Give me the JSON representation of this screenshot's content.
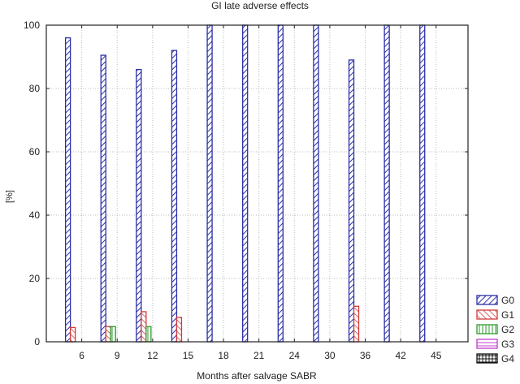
{
  "chart_data": {
    "type": "bar",
    "title": "GI late adverse effects",
    "xlabel": "Months after salvage SABR",
    "ylabel": "[%]",
    "ylim": [
      0,
      100
    ],
    "yticks": [
      0,
      20,
      40,
      60,
      80,
      100
    ],
    "grid": true,
    "legend_position": "right-bottom",
    "categories": [
      "6",
      "9",
      "12",
      "15",
      "18",
      "21",
      "24",
      "30",
      "36",
      "42",
      "45"
    ],
    "series": [
      {
        "name": "G0",
        "color": "#2b2fa8",
        "pattern": "diagonal-up",
        "values": [
          96,
          90.5,
          86,
          92,
          100,
          100,
          100,
          100,
          89,
          100,
          100
        ]
      },
      {
        "name": "G1",
        "color": "#d23a3a",
        "pattern": "diagonal-down",
        "values": [
          4.5,
          4.8,
          9.5,
          7.7,
          0,
          0,
          0,
          0,
          11.2,
          0,
          0
        ]
      },
      {
        "name": "G2",
        "color": "#2f9a2f",
        "pattern": "vertical",
        "values": [
          0,
          4.8,
          4.8,
          0,
          0,
          0,
          0,
          0,
          0,
          0,
          0
        ]
      },
      {
        "name": "G3",
        "color": "#c23ccf",
        "pattern": "horizontal",
        "values": [
          0,
          0,
          0,
          0,
          0,
          0,
          0,
          0,
          0,
          0,
          0
        ]
      },
      {
        "name": "G4",
        "color": "#111111",
        "pattern": "grid",
        "values": [
          0,
          0,
          0,
          0,
          0,
          0,
          0,
          0,
          0,
          0,
          0
        ]
      }
    ]
  }
}
